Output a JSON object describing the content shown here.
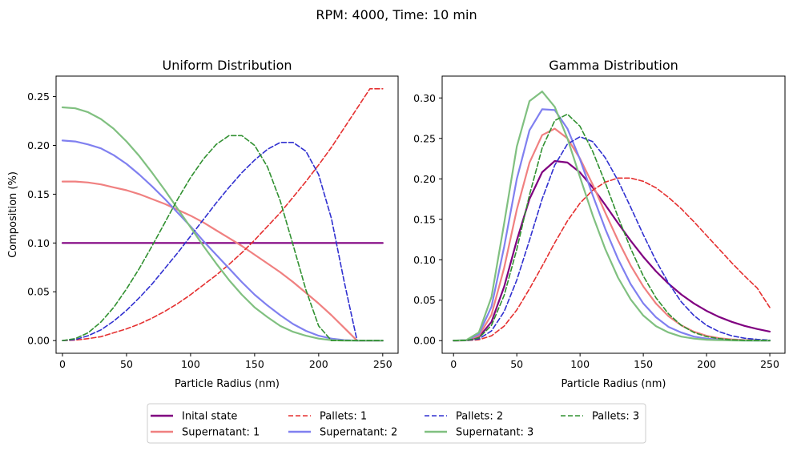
{
  "figure": {
    "suptitle": "RPM: 4000, Time: 10 min"
  },
  "legend": {
    "entries": [
      {
        "label": "Inital state",
        "color": "#800080",
        "dashed": false
      },
      {
        "label": "Supernatant: 1",
        "color": "#f08080",
        "dashed": false
      },
      {
        "label": "Pallets: 1",
        "color": "#e53030",
        "dashed": true
      },
      {
        "label": "Supernatant: 2",
        "color": "#8080f0",
        "dashed": false
      },
      {
        "label": "Pallets: 2",
        "color": "#3030d0",
        "dashed": true
      },
      {
        "label": "Supernatant: 3",
        "color": "#80c080",
        "dashed": false
      },
      {
        "label": "Pallets: 3",
        "color": "#309030",
        "dashed": true
      }
    ]
  },
  "chart_data": [
    {
      "type": "line",
      "title": "Uniform Distribution",
      "xlabel": "Particle Radius (nm)",
      "ylabel": "Composition (%)",
      "xlim": [
        -5,
        262
      ],
      "ylim": [
        -0.013,
        0.271
      ],
      "xticks": [
        0,
        50,
        100,
        150,
        200,
        250
      ],
      "yticks": [
        0.0,
        0.05,
        0.1,
        0.15,
        0.2,
        0.25
      ],
      "ytick_labels": [
        "0.00",
        "0.05",
        "0.10",
        "0.15",
        "0.20",
        "0.25"
      ],
      "x": [
        0,
        10,
        20,
        30,
        40,
        50,
        60,
        70,
        80,
        90,
        100,
        110,
        120,
        130,
        140,
        150,
        160,
        170,
        180,
        190,
        200,
        210,
        220,
        230,
        240,
        250
      ],
      "series": [
        {
          "name": "Inital state",
          "values": [
            0.1,
            0.1,
            0.1,
            0.1,
            0.1,
            0.1,
            0.1,
            0.1,
            0.1,
            0.1,
            0.1,
            0.1,
            0.1,
            0.1,
            0.1,
            0.1,
            0.1,
            0.1,
            0.1,
            0.1,
            0.1,
            0.1,
            0.1,
            0.1,
            0.1,
            0.1
          ]
        },
        {
          "name": "Supernatant: 1",
          "values": [
            0.163,
            0.163,
            0.162,
            0.16,
            0.157,
            0.154,
            0.15,
            0.145,
            0.14,
            0.134,
            0.128,
            0.121,
            0.113,
            0.105,
            0.097,
            0.088,
            0.079,
            0.07,
            0.06,
            0.049,
            0.038,
            0.026,
            0.013,
            0.0,
            0.0,
            0.0
          ]
        },
        {
          "name": "Pallets: 1",
          "values": [
            0.0,
            0.0005,
            0.002,
            0.004,
            0.008,
            0.012,
            0.017,
            0.023,
            0.03,
            0.038,
            0.047,
            0.057,
            0.067,
            0.078,
            0.09,
            0.103,
            0.117,
            0.131,
            0.147,
            0.163,
            0.18,
            0.198,
            0.218,
            0.238,
            0.258,
            0.258
          ]
        },
        {
          "name": "Supernatant: 2",
          "values": [
            0.205,
            0.204,
            0.201,
            0.197,
            0.19,
            0.181,
            0.17,
            0.158,
            0.145,
            0.131,
            0.117,
            0.102,
            0.088,
            0.074,
            0.06,
            0.047,
            0.036,
            0.026,
            0.017,
            0.01,
            0.005,
            0.002,
            0.0005,
            0.0,
            0.0,
            0.0
          ]
        },
        {
          "name": "Pallets: 2",
          "values": [
            0.0,
            0.001,
            0.005,
            0.011,
            0.02,
            0.031,
            0.044,
            0.058,
            0.074,
            0.09,
            0.107,
            0.124,
            0.141,
            0.157,
            0.172,
            0.185,
            0.196,
            0.203,
            0.203,
            0.194,
            0.17,
            0.125,
            0.06,
            0.0,
            0.0,
            0.0
          ]
        },
        {
          "name": "Supernatant: 3",
          "values": [
            0.239,
            0.238,
            0.234,
            0.227,
            0.217,
            0.204,
            0.189,
            0.172,
            0.154,
            0.135,
            0.116,
            0.097,
            0.079,
            0.062,
            0.047,
            0.034,
            0.024,
            0.015,
            0.009,
            0.005,
            0.002,
            0.0005,
            0.0,
            0.0,
            0.0,
            0.0
          ]
        },
        {
          "name": "Pallets: 3",
          "values": [
            0.0,
            0.002,
            0.008,
            0.019,
            0.034,
            0.053,
            0.074,
            0.097,
            0.121,
            0.145,
            0.167,
            0.186,
            0.201,
            0.21,
            0.21,
            0.2,
            0.178,
            0.143,
            0.098,
            0.052,
            0.015,
            0.0,
            0.0,
            0.0,
            0.0,
            0.0
          ]
        }
      ]
    },
    {
      "type": "line",
      "title": "Gamma Distribution",
      "xlabel": "Particle Radius (nm)",
      "ylabel": "",
      "xlim": [
        -9,
        262
      ],
      "ylim": [
        -0.0156,
        0.327
      ],
      "xticks": [
        0,
        50,
        100,
        150,
        200,
        250
      ],
      "yticks": [
        0.0,
        0.05,
        0.1,
        0.15,
        0.2,
        0.25,
        0.3
      ],
      "ytick_labels": [
        "0.00",
        "0.05",
        "0.10",
        "0.15",
        "0.20",
        "0.25",
        "0.30"
      ],
      "x": [
        0,
        10,
        20,
        30,
        40,
        50,
        60,
        70,
        80,
        90,
        100,
        110,
        120,
        130,
        140,
        150,
        160,
        170,
        180,
        190,
        200,
        210,
        220,
        230,
        240,
        250
      ],
      "series": [
        {
          "name": "Inital state",
          "values": [
            0.0,
            0.0003,
            0.0043,
            0.0232,
            0.0667,
            0.1239,
            0.175,
            0.2082,
            0.222,
            0.2202,
            0.2079,
            0.1894,
            0.1677,
            0.1453,
            0.1236,
            0.1036,
            0.0858,
            0.0703,
            0.0571,
            0.046,
            0.0368,
            0.0293,
            0.0232,
            0.0183,
            0.0144,
            0.0112
          ]
        },
        {
          "name": "Supernatant: 1",
          "values": [
            0.0,
            0.0004,
            0.006,
            0.032,
            0.09,
            0.162,
            0.22,
            0.254,
            0.262,
            0.25,
            0.225,
            0.193,
            0.158,
            0.124,
            0.093,
            0.067,
            0.046,
            0.03,
            0.019,
            0.011,
            0.006,
            0.003,
            0.0015,
            0.0007,
            0.0003,
            0.0001
          ]
        },
        {
          "name": "Pallets: 1",
          "values": [
            0.0,
            0.0001,
            0.0011,
            0.006,
            0.018,
            0.038,
            0.064,
            0.092,
            0.121,
            0.148,
            0.17,
            0.186,
            0.196,
            0.201,
            0.201,
            0.197,
            0.189,
            0.177,
            0.163,
            0.147,
            0.13,
            0.113,
            0.096,
            0.08,
            0.065,
            0.041
          ]
        },
        {
          "name": "Supernatant: 2",
          "values": [
            0.0,
            0.0005,
            0.008,
            0.042,
            0.116,
            0.2,
            0.26,
            0.286,
            0.285,
            0.262,
            0.224,
            0.18,
            0.138,
            0.101,
            0.07,
            0.046,
            0.029,
            0.017,
            0.01,
            0.005,
            0.0025,
            0.0012,
            0.0005,
            0.0002,
            0.0001,
            0.0
          ]
        },
        {
          "name": "Pallets: 2",
          "values": [
            0.0,
            0.0001,
            0.0021,
            0.012,
            0.036,
            0.075,
            0.124,
            0.175,
            0.217,
            0.243,
            0.252,
            0.246,
            0.226,
            0.198,
            0.165,
            0.131,
            0.099,
            0.071,
            0.048,
            0.031,
            0.019,
            0.011,
            0.006,
            0.003,
            0.0015,
            0.0006
          ]
        },
        {
          "name": "Supernatant: 3",
          "values": [
            0.0,
            0.0006,
            0.01,
            0.054,
            0.145,
            0.24,
            0.296,
            0.308,
            0.289,
            0.25,
            0.202,
            0.155,
            0.113,
            0.078,
            0.051,
            0.031,
            0.018,
            0.01,
            0.005,
            0.0025,
            0.0011,
            0.0005,
            0.0002,
            0.0001,
            0.0,
            0.0
          ]
        },
        {
          "name": "Pallets: 3",
          "values": [
            0.0,
            0.0002,
            0.0033,
            0.019,
            0.056,
            0.113,
            0.18,
            0.238,
            0.272,
            0.28,
            0.265,
            0.234,
            0.195,
            0.153,
            0.114,
            0.08,
            0.053,
            0.033,
            0.019,
            0.01,
            0.005,
            0.0025,
            0.001,
            0.0004,
            0.0001,
            0.0
          ]
        }
      ]
    }
  ]
}
